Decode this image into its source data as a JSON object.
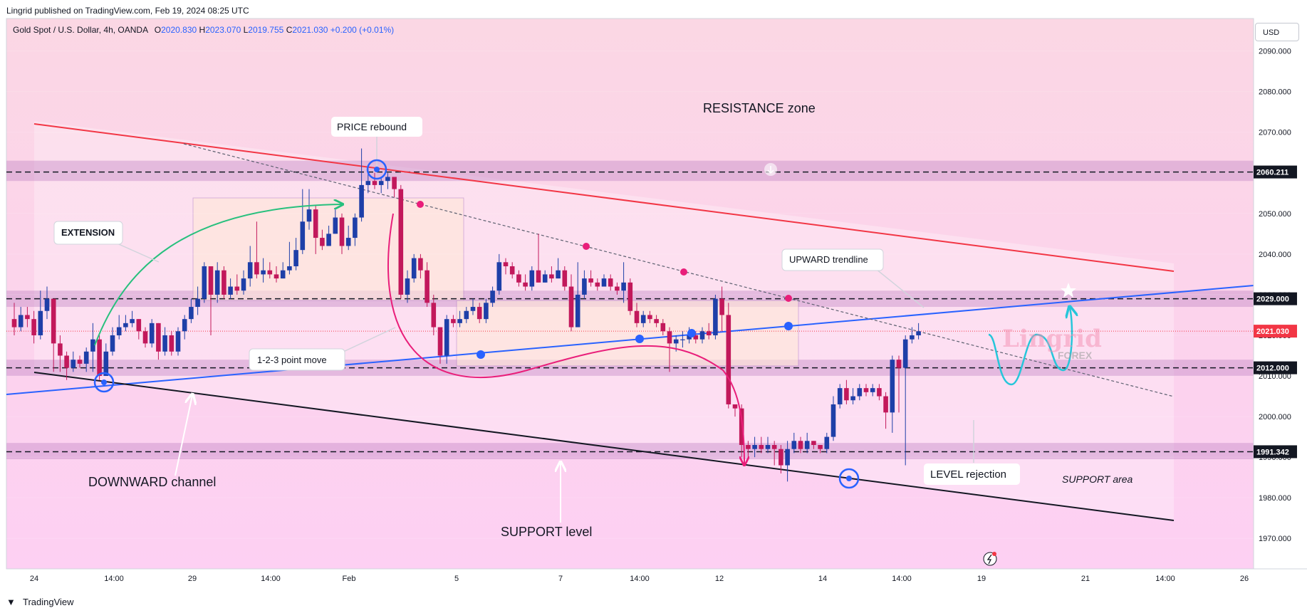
{
  "header": {
    "publish_text": "Lingrid published on TradingView.com, Feb 19, 2024 08:25 UTC"
  },
  "symbol_info": {
    "name": "Gold Spot / U.S. Dollar, 4h, OANDA",
    "open_label": "O",
    "open": "2020.830",
    "high_label": "H",
    "high": "2023.070",
    "low_label": "L",
    "low": "2019.755",
    "close_label": "C",
    "close": "2021.030",
    "change": "+0.200 (+0.01%)"
  },
  "currency_button": "USD",
  "footer": {
    "brand": "TradingView"
  },
  "watermark": {
    "line1": "Lingrid",
    "line2": "FOREX"
  },
  "colors": {
    "bull": "#1e3fa8",
    "bear": "#c2185b",
    "background_top": "#fbd6e6",
    "background_bottom": "#fdd2f3",
    "zone": "#dca6d4",
    "resistance_line": "#f23645",
    "trendline": "#2962ff",
    "price_label": "#f23645"
  },
  "annotations": {
    "resistance_zone": "RESISTANCE zone",
    "price_rebound": "PRICE rebound",
    "extension": "EXTENSION",
    "upward_trendline": "UPWARD trendline",
    "point_move": "1-2-3 point move",
    "downward_channel": "DOWNWARD channel",
    "support_level": "SUPPORT level",
    "level_rejection": "LEVEL rejection",
    "support_area": "SUPPORT area"
  },
  "chart_data": {
    "type": "candlestick",
    "symbol": "Gold Spot / U.S. Dollar",
    "timeframe": "4h",
    "exchange": "OANDA",
    "x_tick_labels": [
      "24",
      "14:00",
      "29",
      "14:00",
      "Feb",
      "5",
      "7",
      "14:00",
      "12",
      "14",
      "14:00",
      "19",
      "21",
      "14:00",
      "26"
    ],
    "y_tick_labels": [
      "1970.000",
      "1980.000",
      "1990.000",
      "2000.000",
      "2010.000",
      "2020.000",
      "2030.000",
      "2040.000",
      "2050.000",
      "2060.000",
      "2070.000",
      "2080.000",
      "2090.000"
    ],
    "ylim": [
      1962.5,
      2098
    ],
    "price_levels": [
      {
        "value": 2060.211,
        "label": "2060.211",
        "style": "dashed"
      },
      {
        "value": 2029.0,
        "label": "2029.000",
        "style": "dashed"
      },
      {
        "value": 2021.03,
        "label": "2021.030",
        "style": "current"
      },
      {
        "value": 2012.0,
        "label": "2012.000",
        "style": "dashed"
      },
      {
        "value": 1991.342,
        "label": "1991.342",
        "style": "dashed"
      }
    ],
    "candles": [
      [
        2024.0,
        2022.0,
        2028.0,
        2020.0
      ],
      [
        2022.0,
        2025.0,
        2027.0,
        2021.0
      ],
      [
        2025.0,
        2024.0,
        2027.0,
        2022.0
      ],
      [
        2024.0,
        2020.0,
        2026.0,
        2018.0
      ],
      [
        2020.0,
        2026.0,
        2031.0,
        2019.0
      ],
      [
        2026.0,
        2029.0,
        2032.0,
        2024.0
      ],
      [
        2029.0,
        2018.0,
        2029.0,
        2011.0
      ],
      [
        2018.0,
        2015.0,
        2020.0,
        2011.0
      ],
      [
        2015.0,
        2012.0,
        2016.0,
        2009.0
      ],
      [
        2012.0,
        2014.0,
        2016.0,
        2011.0
      ],
      [
        2014.0,
        2013.0,
        2015.0,
        2012.0
      ],
      [
        2013.0,
        2016.0,
        2017.0,
        2011.0
      ],
      [
        2016.0,
        2019.0,
        2023.0,
        2011.0
      ],
      [
        2019.0,
        2010.0,
        2020.0,
        2009.0
      ],
      [
        2010.0,
        2016.0,
        2018.0,
        2010.0
      ],
      [
        2016.0,
        2020.0,
        2022.0,
        2015.0
      ],
      [
        2020.0,
        2022.0,
        2025.0,
        2019.0
      ],
      [
        2022.0,
        2023.0,
        2025.0,
        2021.0
      ],
      [
        2023.0,
        2024.0,
        2026.0,
        2022.0
      ],
      [
        2024.0,
        2021.0,
        2024.0,
        2019.0
      ],
      [
        2021.0,
        2018.0,
        2022.0,
        2017.0
      ],
      [
        2018.0,
        2023.0,
        2024.0,
        2017.0
      ],
      [
        2023.0,
        2016.0,
        2023.0,
        2014.0
      ],
      [
        2016.0,
        2020.0,
        2022.0,
        2015.0
      ],
      [
        2020.0,
        2016.0,
        2021.0,
        2015.0
      ],
      [
        2016.0,
        2021.0,
        2022.0,
        2015.0
      ],
      [
        2021.0,
        2024.0,
        2025.0,
        2019.0
      ],
      [
        2024.0,
        2027.0,
        2029.0,
        2023.0
      ],
      [
        2027.0,
        2029.0,
        2032.0,
        2025.0
      ],
      [
        2029.0,
        2037.0,
        2038.0,
        2028.0
      ],
      [
        2037.0,
        2030.0,
        2037.0,
        2020.0
      ],
      [
        2030.0,
        2036.0,
        2038.0,
        2028.0
      ],
      [
        2036.0,
        2030.0,
        2037.0,
        2029.0
      ],
      [
        2030.0,
        2032.0,
        2034.0,
        2029.0
      ],
      [
        2032.0,
        2031.0,
        2035.0,
        2030.0
      ],
      [
        2031.0,
        2034.0,
        2036.0,
        2030.0
      ],
      [
        2034.0,
        2038.0,
        2042.0,
        2032.0
      ],
      [
        2038.0,
        2035.0,
        2048.0,
        2034.0
      ],
      [
        2035.0,
        2036.0,
        2039.0,
        2033.0
      ],
      [
        2036.0,
        2035.0,
        2038.0,
        2034.0
      ],
      [
        2035.0,
        2034.0,
        2037.0,
        2033.0
      ],
      [
        2034.0,
        2036.0,
        2038.0,
        2034.0
      ],
      [
        2036.0,
        2037.0,
        2043.0,
        2035.0
      ],
      [
        2037.0,
        2041.0,
        2044.0,
        2036.0
      ],
      [
        2041.0,
        2048.0,
        2056.0,
        2040.0
      ],
      [
        2048.0,
        2051.0,
        2056.0,
        2046.0
      ],
      [
        2051.0,
        2044.0,
        2052.0,
        2040.0
      ],
      [
        2044.0,
        2042.0,
        2046.0,
        2041.0
      ],
      [
        2042.0,
        2045.0,
        2047.0,
        2042.0
      ],
      [
        2045.0,
        2049.0,
        2051.0,
        2045.0
      ],
      [
        2049.0,
        2042.0,
        2050.0,
        2040.0
      ],
      [
        2042.0,
        2044.0,
        2047.0,
        2041.0
      ],
      [
        2044.0,
        2049.0,
        2050.0,
        2042.0
      ],
      [
        2049.0,
        2057.0,
        2066.0,
        2048.0
      ],
      [
        2057.0,
        2058.0,
        2061.0,
        2055.0
      ],
      [
        2058.0,
        2057.0,
        2060.0,
        2056.0
      ],
      [
        2057.0,
        2058.0,
        2059.0,
        2055.0
      ],
      [
        2058.0,
        2059.0,
        2060.0,
        2056.0
      ],
      [
        2059.0,
        2056.0,
        2059.0,
        2054.0
      ],
      [
        2056.0,
        2030.0,
        2057.0,
        2029.0
      ],
      [
        2030.0,
        2034.0,
        2036.0,
        2028.0
      ],
      [
        2034.0,
        2039.0,
        2040.0,
        2033.0
      ],
      [
        2039.0,
        2036.0,
        2040.0,
        2034.0
      ],
      [
        2036.0,
        2028.0,
        2038.0,
        2027.0
      ],
      [
        2028.0,
        2022.0,
        2030.0,
        2020.0
      ],
      [
        2022.0,
        2015.0,
        2022.0,
        2013.0
      ],
      [
        2015.0,
        2024.0,
        2025.0,
        2013.0
      ],
      [
        2024.0,
        2023.0,
        2025.0,
        2022.0
      ],
      [
        2023.0,
        2024.0,
        2026.0,
        2022.0
      ],
      [
        2024.0,
        2026.0,
        2027.0,
        2023.0
      ],
      [
        2026.0,
        2027.0,
        2029.0,
        2025.0
      ],
      [
        2027.0,
        2024.0,
        2028.0,
        2023.0
      ],
      [
        2024.0,
        2028.0,
        2029.0,
        2023.0
      ],
      [
        2028.0,
        2031.0,
        2032.0,
        2027.0
      ],
      [
        2031.0,
        2038.0,
        2040.0,
        2030.0
      ],
      [
        2038.0,
        2037.0,
        2039.0,
        2035.0
      ],
      [
        2037.0,
        2035.0,
        2038.0,
        2034.0
      ],
      [
        2035.0,
        2033.0,
        2036.0,
        2032.0
      ],
      [
        2033.0,
        2032.0,
        2035.0,
        2031.0
      ],
      [
        2032.0,
        2036.0,
        2037.0,
        2031.0
      ],
      [
        2036.0,
        2033.0,
        2045.0,
        2033.0
      ],
      [
        2033.0,
        2035.0,
        2036.0,
        2033.0
      ],
      [
        2035.0,
        2034.0,
        2037.0,
        2033.0
      ],
      [
        2034.0,
        2036.0,
        2039.0,
        2034.0
      ],
      [
        2036.0,
        2032.0,
        2037.0,
        2031.0
      ],
      [
        2032.0,
        2022.0,
        2035.0,
        2021.0
      ],
      [
        2022.0,
        2030.0,
        2038.0,
        2022.0
      ],
      [
        2030.0,
        2034.0,
        2036.0,
        2029.0
      ],
      [
        2034.0,
        2033.0,
        2036.0,
        2032.0
      ],
      [
        2033.0,
        2032.0,
        2034.0,
        2031.0
      ],
      [
        2032.0,
        2034.0,
        2035.0,
        2032.0
      ],
      [
        2034.0,
        2032.0,
        2035.0,
        2031.0
      ],
      [
        2032.0,
        2031.0,
        2033.0,
        2030.0
      ],
      [
        2031.0,
        2033.0,
        2038.0,
        2028.0
      ],
      [
        2033.0,
        2026.0,
        2034.0,
        2025.0
      ],
      [
        2026.0,
        2023.0,
        2028.0,
        2022.0
      ],
      [
        2023.0,
        2025.0,
        2026.0,
        2022.0
      ],
      [
        2025.0,
        2024.0,
        2026.0,
        2023.0
      ],
      [
        2024.0,
        2023.0,
        2025.0,
        2022.0
      ],
      [
        2023.0,
        2021.0,
        2024.0,
        2020.0
      ],
      [
        2021.0,
        2018.0,
        2022.0,
        2011.0
      ],
      [
        2018.0,
        2019.0,
        2020.0,
        2016.0
      ],
      [
        2019.0,
        2019.0,
        2021.0,
        2017.0
      ],
      [
        2019.0,
        2020.0,
        2022.0,
        2018.0
      ],
      [
        2020.0,
        2019.0,
        2021.0,
        2018.0
      ],
      [
        2019.0,
        2021.0,
        2022.0,
        2018.0
      ],
      [
        2021.0,
        2020.0,
        2023.0,
        2019.0
      ],
      [
        2020.0,
        2029.0,
        2030.0,
        2019.0
      ],
      [
        2029.0,
        2025.0,
        2032.0,
        2021.0
      ],
      [
        2025.0,
        2003.0,
        2028.0,
        2002.0
      ],
      [
        2003.0,
        2002.0,
        2003.0,
        2000.0
      ],
      [
        2002.0,
        1993.0,
        2003.0,
        1990.0
      ],
      [
        1993.0,
        1992.0,
        1994.0,
        1990.0
      ],
      [
        1992.0,
        1993.0,
        1995.0,
        1990.0
      ],
      [
        1993.0,
        1992.0,
        1995.0,
        1991.0
      ],
      [
        1992.0,
        1993.0,
        1995.0,
        1991.0
      ],
      [
        1993.0,
        1992.0,
        1994.0,
        1988.0
      ],
      [
        1992.0,
        1988.0,
        1993.0,
        1986.0
      ],
      [
        1988.0,
        1992.0,
        1994.0,
        1984.0
      ],
      [
        1992.0,
        1994.0,
        1996.0,
        1991.0
      ],
      [
        1994.0,
        1992.0,
        1995.0,
        1991.0
      ],
      [
        1992.0,
        1994.0,
        1996.0,
        1991.0
      ],
      [
        1994.0,
        1993.0,
        1994.0,
        1992.0
      ],
      [
        1993.0,
        1992.0,
        1993.0,
        1991.0
      ],
      [
        1992.0,
        1995.0,
        1996.0,
        1991.0
      ],
      [
        1995.0,
        2003.0,
        2005.0,
        1994.0
      ],
      [
        2003.0,
        2007.0,
        2008.0,
        2002.0
      ],
      [
        2007.0,
        2004.0,
        2009.0,
        2003.0
      ],
      [
        2004.0,
        2005.0,
        2007.0,
        2003.0
      ],
      [
        2005.0,
        2007.0,
        2008.0,
        2004.0
      ],
      [
        2007.0,
        2006.0,
        2008.0,
        2005.0
      ],
      [
        2006.0,
        2007.0,
        2008.0,
        2005.0
      ],
      [
        2007.0,
        2005.0,
        2008.0,
        2004.0
      ],
      [
        2005.0,
        2001.0,
        2006.0,
        1997.0
      ],
      [
        2001.0,
        2014.0,
        2015.0,
        1996.0
      ],
      [
        2014.0,
        2012.0,
        2015.0,
        2001.0
      ],
      [
        2012.0,
        2019.0,
        2020.0,
        1988.0
      ],
      [
        2019.0,
        2020.0,
        2022.0,
        2018.0
      ],
      [
        2020.0,
        2021.0,
        2023.0,
        2019.0
      ]
    ]
  }
}
